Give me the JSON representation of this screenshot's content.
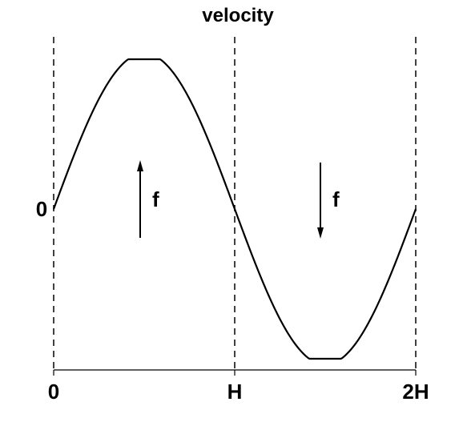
{
  "title": "velocity",
  "y_zero_label": "0",
  "x_tick_labels": [
    "0",
    "H",
    "2H"
  ],
  "force_labels": [
    "f",
    "f"
  ],
  "colors": {
    "line": "#000000",
    "background": "#ffffff"
  }
}
